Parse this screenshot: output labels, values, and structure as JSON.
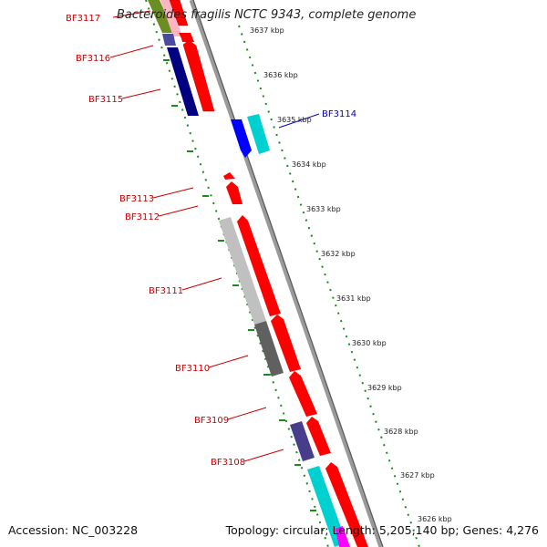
{
  "title": "Bacteroides fragilis NCTC 9343, complete genome",
  "footer": {
    "accession": "Accession: NC_003228",
    "topology": "Topology: circular; Length: 5,205,140 bp; Genes: 4,276"
  },
  "colors": {
    "gene_label": "#cc0000",
    "highlight_label": "#0000cc",
    "strand_green": "#1a8c1a",
    "red": "#ff0000",
    "navy": "#000080",
    "blue": "#0000ff",
    "cyan": "#00d4d4",
    "light_gray": "#c0c0c0",
    "dark_gray": "#606060",
    "slate_blue": "#483d8b",
    "olive": "#6b8e23",
    "magenta": "#ff00ff",
    "pink": "#ff69b4"
  },
  "scale": {
    "ticks": [
      "3637 kbp",
      "3636 kbp",
      "3635 kbp",
      "3634 kbp",
      "3633 kbp",
      "3632 kbp",
      "3631 kbp",
      "3630 kbp",
      "3629 kbp",
      "3628 kbp",
      "3627 kbp",
      "3626 kbp"
    ]
  },
  "gene_labels": [
    {
      "id": "BF3117",
      "text": "BF3117"
    },
    {
      "id": "BF3116",
      "text": "BF3116"
    },
    {
      "id": "BF3115",
      "text": "BF3115"
    },
    {
      "id": "BF3114",
      "text": "BF3114"
    },
    {
      "id": "BF3113",
      "text": "BF3113"
    },
    {
      "id": "BF3112",
      "text": "BF3112"
    },
    {
      "id": "BF3111",
      "text": "BF3111"
    },
    {
      "id": "BF3110",
      "text": "BF3110"
    },
    {
      "id": "BF3109",
      "text": "BF3109"
    },
    {
      "id": "BF3108",
      "text": "BF3108"
    }
  ]
}
